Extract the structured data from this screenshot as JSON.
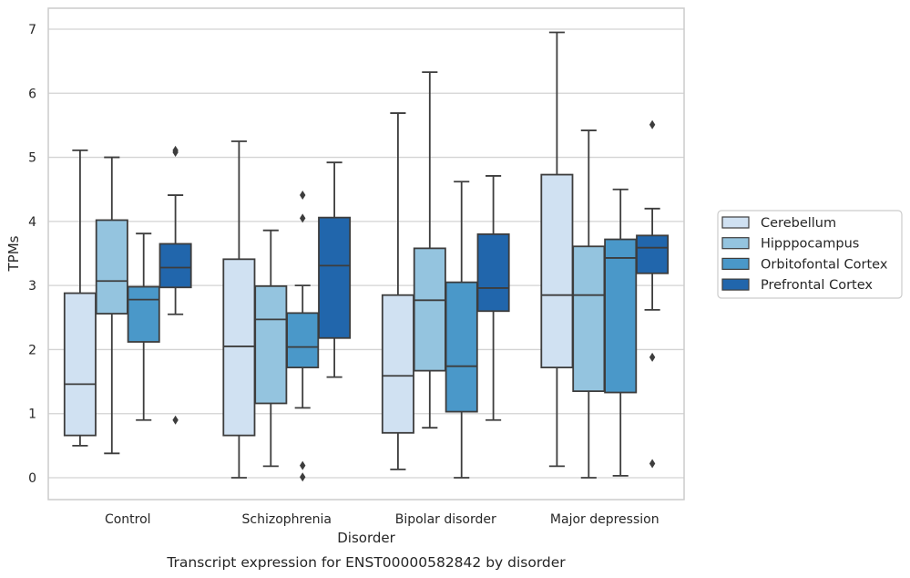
{
  "chart_data": {
    "type": "box",
    "xlabel": "Disorder",
    "ylabel": "TPMs",
    "caption": "Transcript expression for ENST00000582842 by disorder",
    "ylim": [
      -0.33,
      7.33
    ],
    "yticks": [
      0,
      1,
      2,
      3,
      4,
      5,
      6,
      7
    ],
    "grid": "horizontal",
    "legend_position": "right",
    "categories": [
      "Control",
      "Schizophrenia",
      "Bipolar disorder",
      "Major depression"
    ],
    "series": [
      {
        "name": "Cerebellum",
        "color": "#d0e1f2",
        "boxes": [
          {
            "whislo": 0.5,
            "q1": 0.66,
            "med": 1.46,
            "q3": 2.88,
            "whishi": 5.11,
            "fliers": []
          },
          {
            "whislo": 0.0,
            "q1": 0.66,
            "med": 2.05,
            "q3": 3.41,
            "whishi": 5.25,
            "fliers": []
          },
          {
            "whislo": 0.13,
            "q1": 0.7,
            "med": 1.59,
            "q3": 2.85,
            "whishi": 5.69,
            "fliers": []
          },
          {
            "whislo": 0.18,
            "q1": 1.72,
            "med": 2.85,
            "q3": 4.73,
            "whishi": 6.95,
            "fliers": []
          }
        ]
      },
      {
        "name": "Hipppocampus",
        "color": "#94c4df",
        "boxes": [
          {
            "whislo": 0.38,
            "q1": 2.56,
            "med": 3.07,
            "q3": 4.02,
            "whishi": 5.0,
            "fliers": []
          },
          {
            "whislo": 0.18,
            "q1": 1.16,
            "med": 2.47,
            "q3": 2.99,
            "whishi": 3.86,
            "fliers": []
          },
          {
            "whislo": 0.78,
            "q1": 1.67,
            "med": 2.77,
            "q3": 3.58,
            "whishi": 6.33,
            "fliers": []
          },
          {
            "whislo": 0.0,
            "q1": 1.35,
            "med": 2.85,
            "q3": 3.61,
            "whishi": 5.42,
            "fliers": []
          }
        ]
      },
      {
        "name": "Orbitofontal Cortex",
        "color": "#4a98c9",
        "boxes": [
          {
            "whislo": 0.9,
            "q1": 2.12,
            "med": 2.78,
            "q3": 2.98,
            "whishi": 3.81,
            "fliers": []
          },
          {
            "whislo": 1.09,
            "q1": 1.72,
            "med": 2.04,
            "q3": 2.57,
            "whishi": 3.0,
            "fliers": [
              4.05,
              4.41,
              0.19,
              0.01
            ]
          },
          {
            "whislo": 0.0,
            "q1": 1.03,
            "med": 1.74,
            "q3": 3.05,
            "whishi": 4.62,
            "fliers": []
          },
          {
            "whislo": 0.03,
            "q1": 1.33,
            "med": 3.43,
            "q3": 3.72,
            "whishi": 4.5,
            "fliers": []
          }
        ]
      },
      {
        "name": "Prefrontal Cortex",
        "color": "#2166ac",
        "boxes": [
          {
            "whislo": 2.55,
            "q1": 2.97,
            "med": 3.28,
            "q3": 3.65,
            "whishi": 4.41,
            "fliers": [
              5.08,
              5.11,
              0.9
            ]
          },
          {
            "whislo": 1.57,
            "q1": 2.18,
            "med": 3.31,
            "q3": 4.06,
            "whishi": 4.92,
            "fliers": []
          },
          {
            "whislo": 0.9,
            "q1": 2.6,
            "med": 2.96,
            "q3": 3.8,
            "whishi": 4.71,
            "fliers": []
          },
          {
            "whislo": 2.62,
            "q1": 3.19,
            "med": 3.59,
            "q3": 3.78,
            "whishi": 4.2,
            "fliers": [
              5.51,
              1.88,
              0.22
            ]
          }
        ]
      }
    ]
  }
}
